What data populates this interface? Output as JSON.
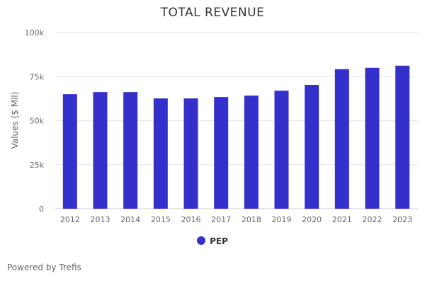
{
  "chart_data": {
    "type": "bar",
    "title": "TOTAL REVENUE",
    "xlabel": "",
    "ylabel": "Values ($ Mil)",
    "categories": [
      "2012",
      "2013",
      "2014",
      "2015",
      "2016",
      "2017",
      "2018",
      "2019",
      "2020",
      "2021",
      "2022",
      "2023"
    ],
    "series": [
      {
        "name": "PEP",
        "color": "#3430cc",
        "values": [
          65000,
          66200,
          66200,
          62600,
          62600,
          63400,
          64200,
          67000,
          70300,
          79200,
          80000,
          81200
        ]
      }
    ],
    "ylim": [
      0,
      100000
    ],
    "yticks": [
      0,
      25000,
      50000,
      75000,
      100000
    ],
    "ytick_labels": [
      "0",
      "25k",
      "50k",
      "75k",
      "100k"
    ],
    "grid": true,
    "legend_position": "bottom"
  },
  "footer": {
    "credit": "Powered by Trefis"
  }
}
